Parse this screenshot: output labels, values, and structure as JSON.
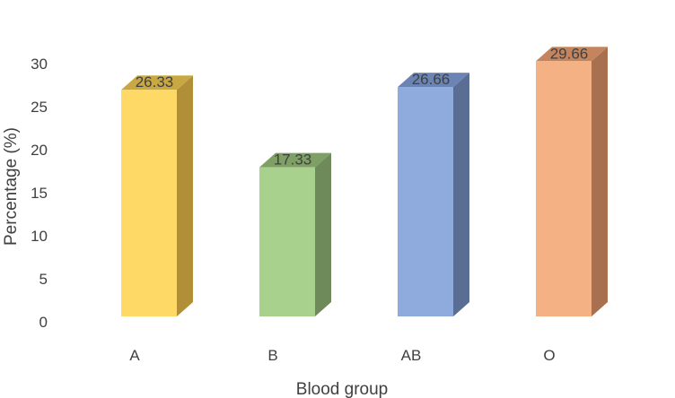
{
  "chart_data": {
    "type": "bar",
    "title": "",
    "xlabel": "Blood group",
    "ylabel": "Percentage (%)",
    "categories": [
      "A",
      "B",
      "AB",
      "O"
    ],
    "values": [
      26.33,
      17.33,
      26.66,
      29.66
    ],
    "data_labels": [
      "26.33",
      "17.33",
      "26.66",
      "29.66"
    ],
    "ylim": [
      0,
      30
    ],
    "yticks": [
      0,
      5,
      10,
      15,
      20,
      25,
      30
    ],
    "grid": false,
    "legend": "none",
    "style": "3d-column",
    "colors": [
      {
        "front": "#FFD966",
        "side": "#B08F38",
        "top": "#C9A844"
      },
      {
        "front": "#A9D18E",
        "side": "#6E8A5B",
        "top": "#7EA065"
      },
      {
        "front": "#8FAADC",
        "side": "#5A6E94",
        "top": "#6B84B3"
      },
      {
        "front": "#F4B183",
        "side": "#A8704F",
        "top": "#C4855E"
      }
    ]
  }
}
